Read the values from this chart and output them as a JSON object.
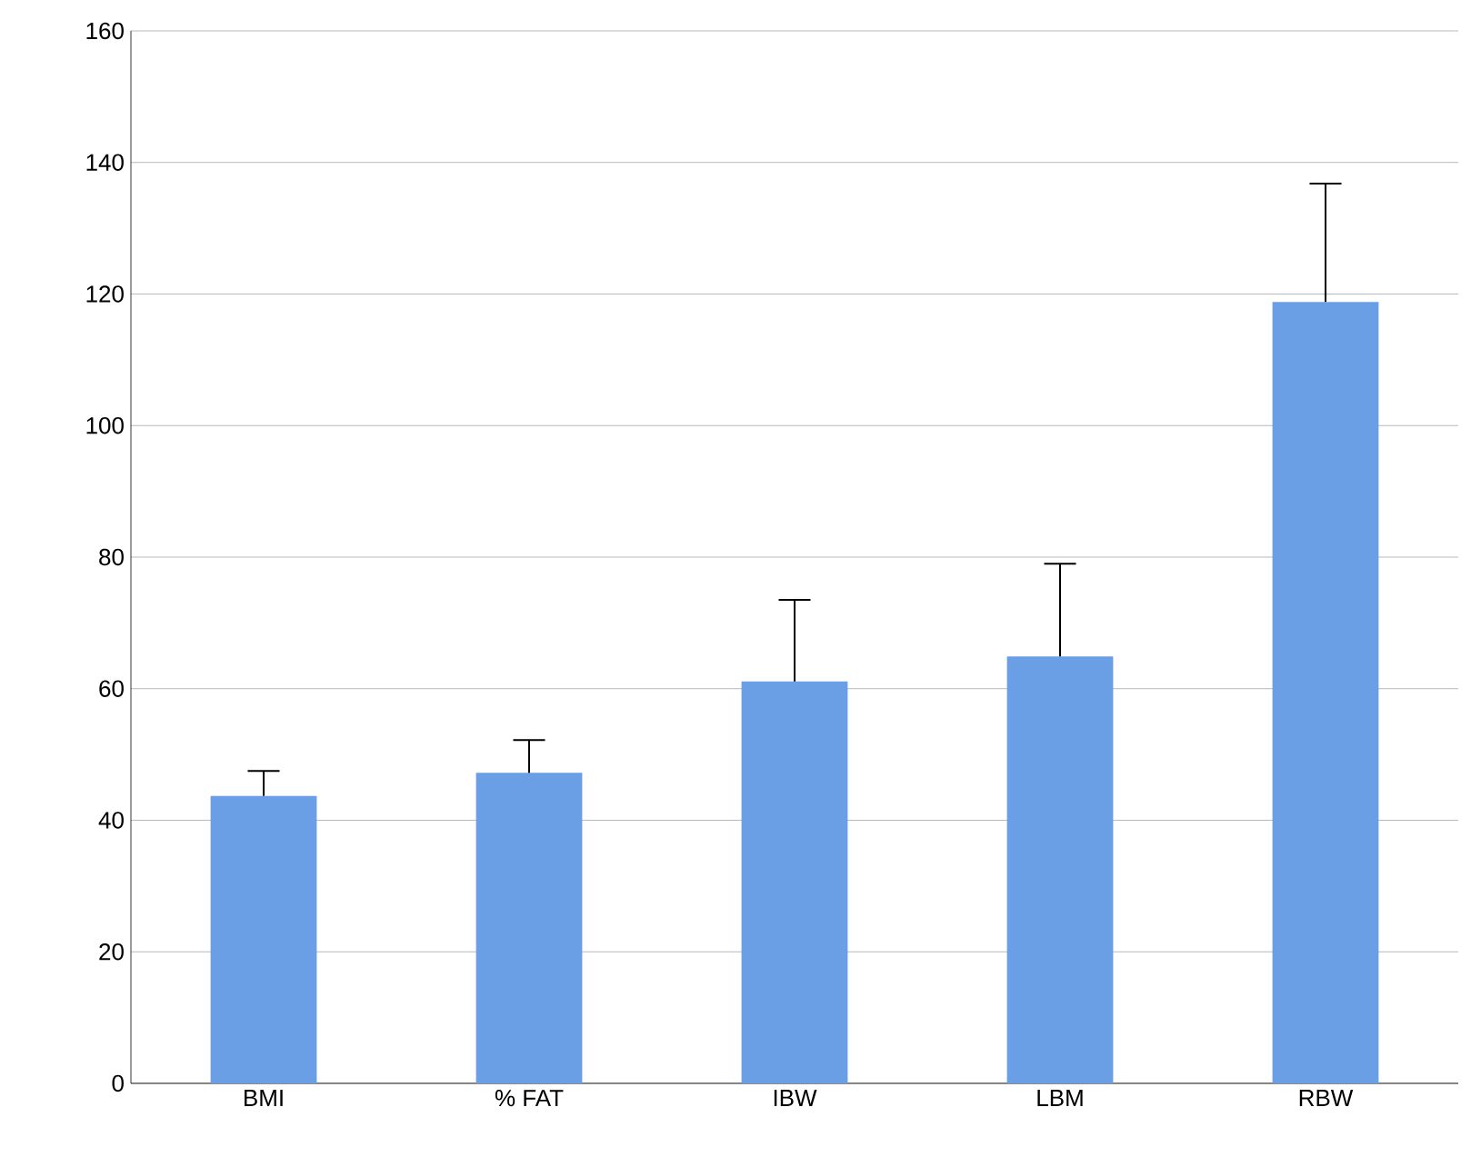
{
  "chart_data": {
    "type": "bar",
    "categories": [
      "BMI",
      "% FAT",
      "IBW",
      "LBM",
      "RBW"
    ],
    "values": [
      43.7,
      47.2,
      61.1,
      64.9,
      118.8
    ],
    "errors": [
      [
        43.7,
        47.5
      ],
      [
        47.2,
        52.2
      ],
      [
        61.1,
        73.5
      ],
      [
        64.9,
        79
      ],
      [
        118.8,
        136.8
      ]
    ],
    "color": "#6a9fe6",
    "ylim": [
      0,
      160
    ],
    "yticks": [
      0,
      20,
      40,
      60,
      80,
      100,
      120,
      140,
      160
    ],
    "grid": "y"
  }
}
